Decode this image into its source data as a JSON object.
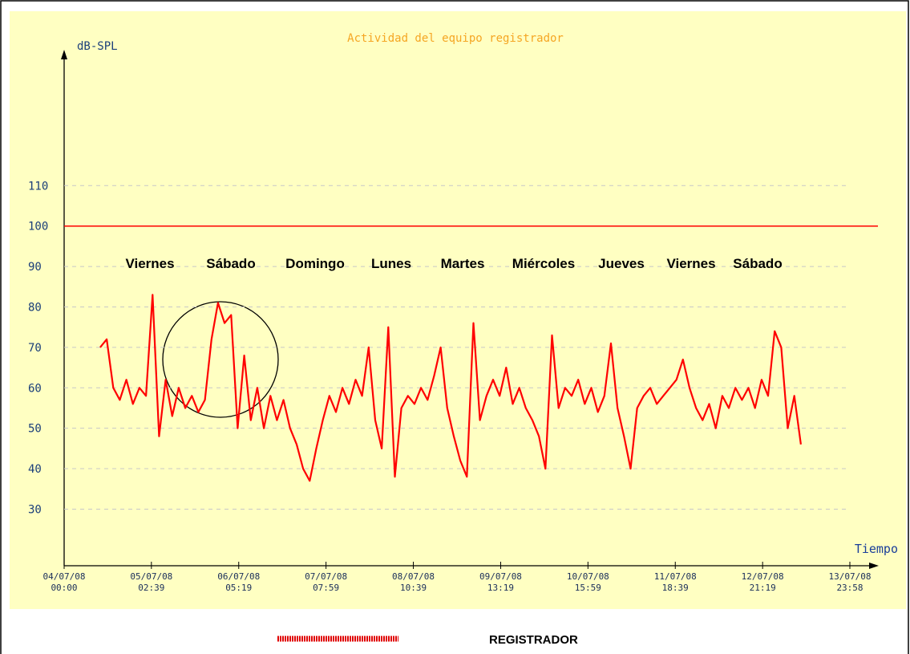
{
  "chart_data": {
    "type": "line",
    "title": "Actividad del equipo registrador",
    "y_label": "dB-SPL",
    "x_label": "Tiempo",
    "annotations": [
      "Viernes",
      "Sábado",
      "Domingo",
      "Lunes",
      "Martes",
      "Miércoles",
      "Jueves",
      "Viernes",
      "Sábado"
    ],
    "x": [
      11,
      13,
      15,
      17,
      19,
      21,
      23,
      25,
      27,
      29,
      31,
      33,
      35,
      37,
      39,
      41,
      43,
      45,
      47,
      49,
      51,
      53,
      55,
      57,
      59,
      61,
      63,
      65,
      67,
      69,
      71,
      73,
      75,
      77,
      79,
      81,
      83,
      85,
      87,
      89,
      91,
      93,
      95,
      97,
      99,
      101,
      103,
      105,
      107,
      109,
      111,
      113,
      115,
      117,
      119,
      121,
      123,
      125,
      127,
      129,
      131,
      133,
      135,
      137,
      139,
      141,
      143,
      145,
      147,
      149,
      151,
      153,
      155,
      157,
      159,
      161,
      163,
      165,
      167,
      169,
      171,
      173,
      175,
      177,
      179,
      181,
      183,
      185,
      187,
      189,
      191,
      193,
      195,
      197,
      199,
      201,
      203,
      205,
      207,
      209,
      211,
      213,
      215,
      217,
      219,
      221,
      223,
      225
    ],
    "series": [
      {
        "name": "REGISTRADOR",
        "color": "#ff0000",
        "values": [
          70,
          72,
          60,
          57,
          62,
          56,
          60,
          58,
          83,
          48,
          62,
          53,
          60,
          55,
          58,
          54,
          57,
          72,
          81,
          76,
          78,
          50,
          68,
          52,
          60,
          50,
          58,
          52,
          57,
          50,
          46,
          40,
          37,
          45,
          52,
          58,
          54,
          60,
          56,
          62,
          58,
          70,
          52,
          45,
          75,
          38,
          55,
          58,
          56,
          60,
          57,
          63,
          70,
          55,
          48,
          42,
          38,
          76,
          52,
          58,
          62,
          58,
          65,
          56,
          60,
          55,
          52,
          48,
          40,
          73,
          55,
          60,
          58,
          62,
          56,
          60,
          54,
          58,
          71,
          55,
          48,
          40,
          55,
          58,
          60,
          56,
          58,
          60,
          62,
          67,
          60,
          55,
          52,
          56,
          50,
          58,
          55,
          60,
          57,
          60,
          55,
          62,
          58,
          74,
          70,
          50,
          58,
          46
        ]
      }
    ],
    "reference_line": {
      "value": 100,
      "color": "#ff0000"
    },
    "xlim": [
      0,
      239.97
    ],
    "xticks": [
      {
        "value": 0,
        "label": "04/07/08\n00:00"
      },
      {
        "value": 26.65,
        "label": "05/07/08\n02:39"
      },
      {
        "value": 53.32,
        "label": "06/07/08\n05:19"
      },
      {
        "value": 79.98,
        "label": "07/07/08\n07:59"
      },
      {
        "value": 106.65,
        "label": "08/07/08\n10:39"
      },
      {
        "value": 133.32,
        "label": "09/07/08\n13:19"
      },
      {
        "value": 159.98,
        "label": "10/07/08\n15:59"
      },
      {
        "value": 186.65,
        "label": "11/07/08\n18:39"
      },
      {
        "value": 213.32,
        "label": "12/07/08\n21:19"
      },
      {
        "value": 239.97,
        "label": "13/07/08\n23:58"
      }
    ],
    "ylim": [
      16,
      143
    ],
    "yticks": [
      30,
      40,
      50,
      60,
      70,
      80,
      90,
      100,
      110
    ],
    "grid": true
  }
}
